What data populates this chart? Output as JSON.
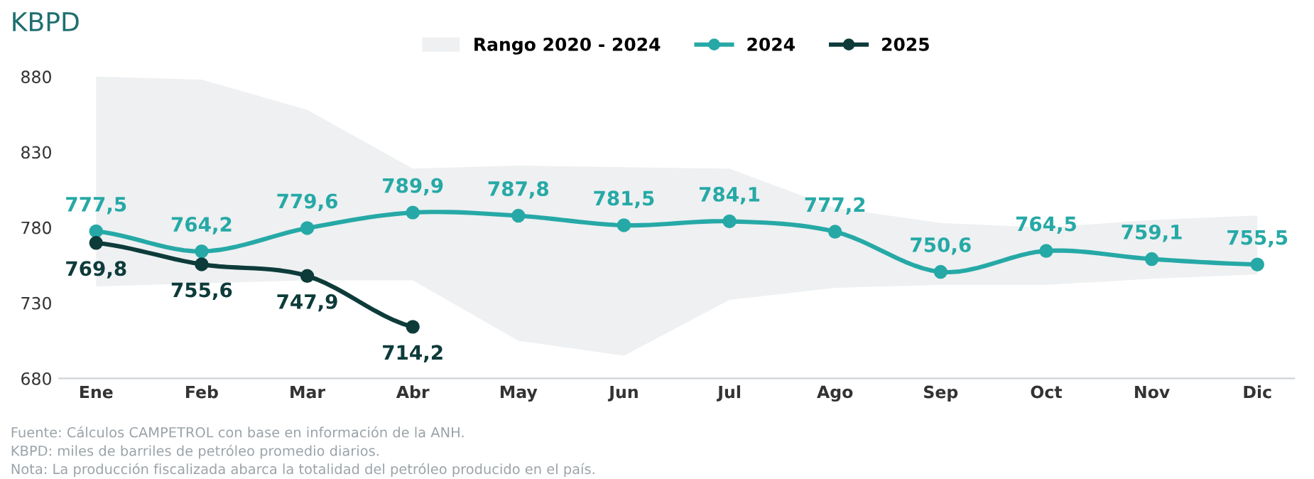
{
  "chart_data": {
    "type": "line",
    "title": "KBPD",
    "categories": [
      "Ene",
      "Feb",
      "Mar",
      "Abr",
      "May",
      "Jun",
      "Jul",
      "Ago",
      "Sep",
      "Oct",
      "Nov",
      "Dic"
    ],
    "series": [
      {
        "name": "Rango 2020 - 2024",
        "type": "area",
        "color": "#eef0f2",
        "values": [
          null,
          null,
          null,
          null,
          null,
          null,
          null,
          null,
          null,
          null,
          null,
          null
        ],
        "lower": [
          741,
          743,
          745,
          745,
          705,
          695,
          732,
          740,
          742,
          742,
          746,
          749
        ],
        "upper": [
          880,
          878,
          858,
          819,
          821,
          820,
          819,
          793,
          783,
          780,
          785,
          788
        ]
      },
      {
        "name": "2024",
        "color": "#26a9a6",
        "values": [
          777.5,
          764.2,
          779.6,
          789.9,
          787.8,
          781.5,
          784.1,
          777.2,
          750.6,
          764.5,
          759.1,
          755.5
        ],
        "value_labels": [
          "777,5",
          "764,2",
          "779,6",
          "789,9",
          "787,8",
          "781,5",
          "784,1",
          "777,2",
          "750,6",
          "764,5",
          "759,1",
          "755,5"
        ]
      },
      {
        "name": "2025",
        "color": "#0d3b3a",
        "values": [
          769.8,
          755.6,
          747.9,
          714.2,
          null,
          null,
          null,
          null,
          null,
          null,
          null,
          null
        ],
        "value_labels": [
          "769,8",
          "755,6",
          "747,9",
          "714,2",
          null,
          null,
          null,
          null,
          null,
          null,
          null,
          null
        ]
      }
    ],
    "ylim": [
      680,
      880
    ],
    "yticks": [
      680,
      730,
      780,
      830,
      880
    ],
    "marker": "circle",
    "legend": "top",
    "grid": false,
    "annotations": [
      "Fuente: Cálculos CAMPETROL con base en información de la ANH.",
      "KBPD: miles de barriles de petróleo promedio diarios.",
      "Nota: La producción fiscalizada abarca la totalidad del petróleo producido en el país."
    ]
  }
}
